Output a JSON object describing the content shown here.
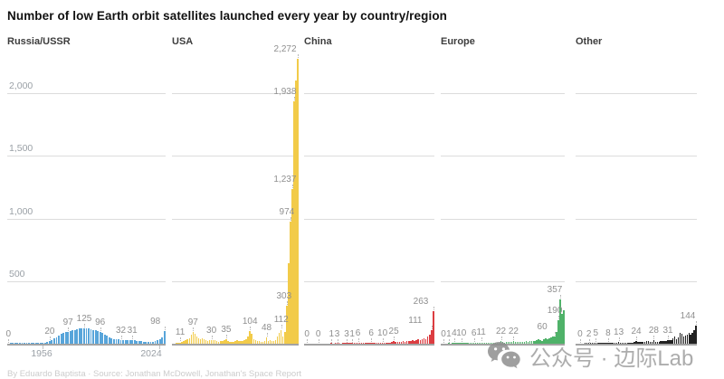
{
  "title": "Number of low Earth orbit satellites launched every year by country/region",
  "footer": {
    "credit": "By Eduardo Baptista · Source: Jonathan McDowell, Jonathan's Space Report"
  },
  "watermark": {
    "icon": "wechat-icon",
    "text": "公众号 · 边际Lab",
    "color": "#9e9e9e"
  },
  "chart_data": {
    "type": "bar",
    "title": "Number of low Earth orbit satellites launched every year by country/region",
    "x_label_first": "1956",
    "x_label_last": "2024",
    "year_start": 1956,
    "year_end": 2024,
    "ylim": [
      0,
      2400
    ],
    "grid": true,
    "gridline_values": [
      500,
      1000,
      1500,
      2000
    ],
    "y_tick_labels": [
      "500",
      "1,000",
      "1,500",
      "2,000"
    ],
    "colors": {
      "grid": "#dcdcdc",
      "axis": "#a3a3a3",
      "tick_text": "#9aa0a6",
      "value_label_text": "#8f8f8f"
    },
    "panels": [
      {
        "name": "Russia/USSR",
        "slug": "russia-ussr",
        "color": "#58a5da",
        "values": [
          0,
          1,
          1,
          1,
          2,
          2,
          3,
          3,
          3,
          4,
          4,
          4,
          5,
          5,
          5,
          6,
          8,
          14,
          20,
          30,
          42,
          54,
          68,
          80,
          88,
          93,
          97,
          101,
          108,
          112,
          118,
          121,
          123,
          125,
          123,
          120,
          116,
          111,
          106,
          101,
          96,
          86,
          74,
          62,
          50,
          42,
          37,
          34,
          33,
          32,
          31,
          30,
          31,
          31,
          31,
          28,
          25,
          22,
          20,
          18,
          16,
          15,
          14,
          16,
          20,
          26,
          34,
          48,
          98
        ],
        "labels": [
          {
            "text": "0",
            "value": 0,
            "index": 0,
            "dx": 0
          },
          {
            "text": "20",
            "value": 20,
            "index": 18,
            "dx": 0
          },
          {
            "text": "97",
            "value": 97,
            "index": 26,
            "dx": 0
          },
          {
            "text": "125",
            "value": 125,
            "index": 33,
            "dx": 0
          },
          {
            "text": "96",
            "value": 96,
            "index": 40,
            "dx": 0
          },
          {
            "text": "32",
            "value": 32,
            "index": 49,
            "dx": 0
          },
          {
            "text": "31",
            "value": 31,
            "index": 54,
            "dx": 0
          },
          {
            "text": "98",
            "value": 98,
            "index": 68,
            "dx": -10
          }
        ]
      },
      {
        "name": "USA",
        "slug": "usa",
        "color": "#f2cb49",
        "values": [
          0,
          0,
          6,
          9,
          11,
          16,
          25,
          32,
          38,
          45,
          70,
          97,
          78,
          58,
          42,
          38,
          45,
          35,
          28,
          24,
          28,
          30,
          32,
          26,
          20,
          17,
          20,
          24,
          30,
          35,
          22,
          14,
          15,
          17,
          20,
          28,
          24,
          19,
          23,
          29,
          33,
          60,
          104,
          78,
          40,
          28,
          20,
          24,
          15,
          17,
          22,
          48,
          24,
          28,
          22,
          25,
          30,
          55,
          85,
          112,
          60,
          95,
          303,
          640,
          974,
          1237,
          1938,
          2100,
          2272
        ],
        "labels": [
          {
            "text": "11",
            "value": 11,
            "index": 4,
            "dx": 0
          },
          {
            "text": "97",
            "value": 97,
            "index": 11,
            "dx": 0
          },
          {
            "text": "30",
            "value": 30,
            "index": 21,
            "dx": 0
          },
          {
            "text": "35",
            "value": 35,
            "index": 29,
            "dx": 0
          },
          {
            "text": "104",
            "value": 104,
            "index": 42,
            "dx": 0
          },
          {
            "text": "48",
            "value": 48,
            "index": 51,
            "dx": 0
          },
          {
            "text": "112",
            "value": 112,
            "index": 59,
            "dx": 0
          },
          {
            "text": "303",
            "value": 303,
            "index": 62,
            "dx": -3
          },
          {
            "text": "974",
            "value": 974,
            "index": 64,
            "dx": -4
          },
          {
            "text": "1,237",
            "value": 1237,
            "index": 65,
            "dx": -8
          },
          {
            "text": "1,938",
            "value": 1938,
            "index": 66,
            "dx": -10
          },
          {
            "text": "2,272",
            "value": 2272,
            "index": 68,
            "dx": -14
          }
        ]
      },
      {
        "name": "China",
        "slug": "china",
        "color": "#dc3d41",
        "values": [
          0,
          0,
          0,
          0,
          0,
          0,
          0,
          0,
          0,
          0,
          0,
          0,
          0,
          0,
          1,
          0,
          1,
          3,
          1,
          0,
          1,
          2,
          3,
          1,
          2,
          1,
          2,
          3,
          6,
          2,
          3,
          2,
          4,
          3,
          5,
          6,
          4,
          5,
          4,
          6,
          7,
          10,
          6,
          8,
          7,
          9,
          12,
          25,
          15,
          18,
          14,
          16,
          20,
          18,
          22,
          20,
          25,
          28,
          24,
          30,
          35,
          30,
          38,
          45,
          40,
          55,
          70,
          111,
          263
        ],
        "labels": [
          {
            "text": "0",
            "value": 0,
            "index": 1,
            "dx": 0
          },
          {
            "text": "0",
            "value": 0,
            "index": 7,
            "dx": 0
          },
          {
            "text": "1",
            "value": 1,
            "index": 14,
            "dx": 0
          },
          {
            "text": "3",
            "value": 3,
            "index": 17,
            "dx": 0
          },
          {
            "text": "3",
            "value": 3,
            "index": 22,
            "dx": 0
          },
          {
            "text": "1",
            "value": 1,
            "index": 25,
            "dx": 0
          },
          {
            "text": "6",
            "value": 6,
            "index": 28,
            "dx": 0
          },
          {
            "text": "6",
            "value": 6,
            "index": 35,
            "dx": 0
          },
          {
            "text": "10",
            "value": 10,
            "index": 41,
            "dx": 0
          },
          {
            "text": "25",
            "value": 25,
            "index": 47,
            "dx": 0
          },
          {
            "text": "111",
            "value": 111,
            "index": 67,
            "dx": -18
          },
          {
            "text": "263",
            "value": 263,
            "index": 68,
            "dx": -14
          }
        ]
      },
      {
        "name": "Europe",
        "slug": "europe",
        "color": "#4fb269",
        "values": [
          0,
          0,
          0,
          0,
          1,
          0,
          1,
          4,
          2,
          2,
          3,
          10,
          5,
          3,
          4,
          6,
          3,
          4,
          6,
          4,
          5,
          8,
          11,
          6,
          7,
          6,
          8,
          7,
          9,
          8,
          10,
          9,
          11,
          22,
          12,
          10,
          12,
          14,
          12,
          16,
          22,
          14,
          12,
          15,
          13,
          16,
          18,
          20,
          17,
          19,
          22,
          20,
          24,
          30,
          34,
          28,
          25,
          38,
          45,
          40,
          42,
          48,
          55,
          60,
          95,
          190,
          357,
          240,
          265
        ],
        "labels": [
          {
            "text": "0",
            "value": 0,
            "index": 1,
            "dx": 0
          },
          {
            "text": "1",
            "value": 1,
            "index": 4,
            "dx": 0
          },
          {
            "text": "4",
            "value": 4,
            "index": 7,
            "dx": 0
          },
          {
            "text": "10",
            "value": 10,
            "index": 11,
            "dx": 0
          },
          {
            "text": "6",
            "value": 6,
            "index": 18,
            "dx": 0
          },
          {
            "text": "11",
            "value": 11,
            "index": 22,
            "dx": 0
          },
          {
            "text": "22",
            "value": 22,
            "index": 33,
            "dx": 0
          },
          {
            "text": "22",
            "value": 22,
            "index": 40,
            "dx": 0
          },
          {
            "text": "60",
            "value": 60,
            "index": 63,
            "dx": -14
          },
          {
            "text": "190",
            "value": 190,
            "index": 65,
            "dx": -4
          },
          {
            "text": "357",
            "value": 357,
            "index": 66,
            "dx": -6
          }
        ]
      },
      {
        "name": "Other",
        "slug": "other",
        "color": "#222222",
        "values": [
          0,
          0,
          0,
          0,
          0,
          1,
          1,
          2,
          1,
          2,
          2,
          5,
          2,
          2,
          3,
          4,
          4,
          3,
          8,
          4,
          5,
          6,
          4,
          5,
          13,
          5,
          7,
          6,
          7,
          8,
          8,
          10,
          9,
          12,
          24,
          12,
          14,
          13,
          16,
          18,
          20,
          22,
          16,
          18,
          28,
          18,
          16,
          18,
          20,
          22,
          24,
          22,
          31,
          26,
          28,
          45,
          55,
          40,
          50,
          90,
          80,
          60,
          65,
          75,
          85,
          70,
          90,
          110,
          144
        ],
        "labels": [
          {
            "text": "0",
            "value": 0,
            "index": 2,
            "dx": 0
          },
          {
            "text": "2",
            "value": 2,
            "index": 7,
            "dx": 0
          },
          {
            "text": "5",
            "value": 5,
            "index": 11,
            "dx": 0
          },
          {
            "text": "8",
            "value": 8,
            "index": 18,
            "dx": 0
          },
          {
            "text": "13",
            "value": 13,
            "index": 24,
            "dx": 0
          },
          {
            "text": "24",
            "value": 24,
            "index": 34,
            "dx": 0
          },
          {
            "text": "28",
            "value": 28,
            "index": 44,
            "dx": 0
          },
          {
            "text": "31",
            "value": 31,
            "index": 52,
            "dx": 0
          },
          {
            "text": "144",
            "value": 144,
            "index": 68,
            "dx": -9
          }
        ]
      }
    ]
  }
}
